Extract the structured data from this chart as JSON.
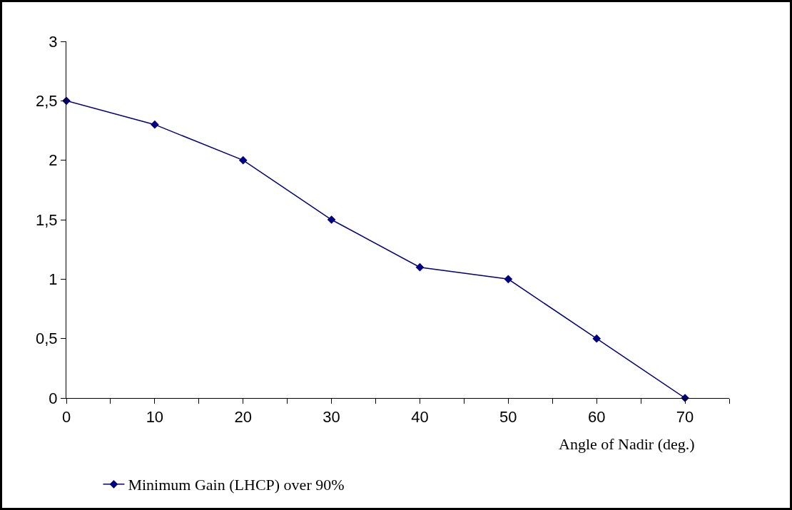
{
  "chart_data": {
    "type": "line",
    "xlabel": "Angle of Nadir (deg.)",
    "x": [
      0,
      10,
      20,
      30,
      40,
      50,
      60,
      70
    ],
    "series": [
      {
        "name": "Minimum Gain (LHCP) over 90%",
        "color": "#000080",
        "values": [
          2.5,
          2.3,
          2.0,
          1.5,
          1.1,
          1.0,
          0.5,
          0
        ]
      }
    ],
    "xlim": [
      0,
      75
    ],
    "xticks": [
      0,
      {
        "value": 5,
        "label": null
      },
      10,
      {
        "value": 15,
        "label": null
      },
      20,
      {
        "value": 25,
        "label": null
      },
      30,
      {
        "value": 35,
        "label": null
      },
      40,
      {
        "value": 45,
        "label": null
      },
      50,
      {
        "value": 55,
        "label": null
      },
      60,
      {
        "value": 65,
        "label": null
      },
      70,
      {
        "value": 75,
        "label": null
      }
    ],
    "ylim": [
      0,
      3
    ],
    "yticks": [
      0,
      {
        "value": 0.5,
        "label": "0,5"
      },
      1,
      {
        "value": 1.5,
        "label": "1,5"
      },
      2,
      {
        "value": 2.5,
        "label": "2,5"
      },
      3
    ],
    "grid": false,
    "legend": "bottom",
    "marker": "diamond",
    "line_style": "solid"
  }
}
